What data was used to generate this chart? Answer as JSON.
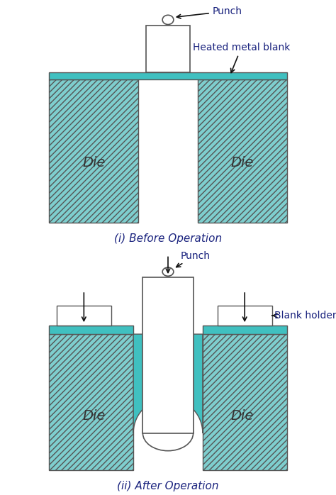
{
  "bg_color": "#ffffff",
  "die_color": "#7ecece",
  "die_hatch": "////",
  "blank_color": "#40c0c0",
  "punch_color": "#ffffff",
  "punch_edge": "#555555",
  "label_color": "#1a237e",
  "arrow_color": "#111111",
  "title1": "(i) Before Operation",
  "title2": "(ii) After Operation",
  "label_punch": "Punch",
  "label_blank": "Heated metal blank",
  "label_blank_holder": "Blank holder",
  "label_die": "Die",
  "die_font_size": 14,
  "label_font_size": 10,
  "title_font_size": 11
}
